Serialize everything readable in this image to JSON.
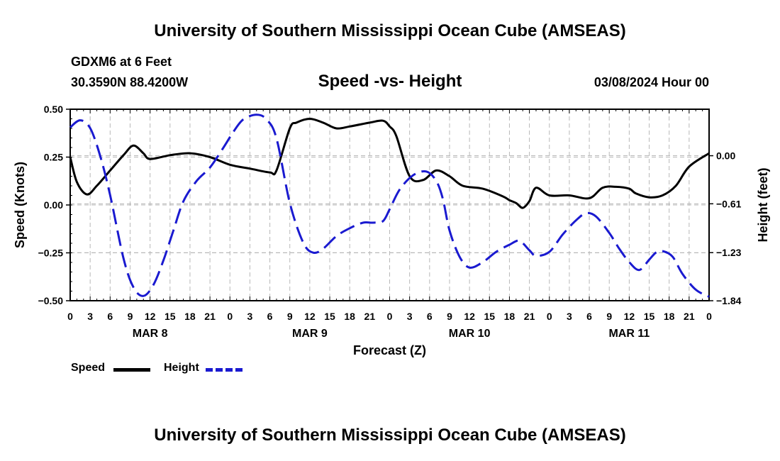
{
  "header": {
    "title": "University of Southern Mississippi Ocean Cube (AMSEAS)",
    "station": "GDXM6 at 6 Feet",
    "coords": "30.3590N  88.4200W",
    "datetime": "03/08/2024 Hour 00"
  },
  "footer": {
    "title": "University of Southern Mississippi Ocean Cube (AMSEAS)"
  },
  "legend": {
    "speed_label": "Speed",
    "height_label": "Height"
  },
  "colors": {
    "speed": "#000000",
    "height": "#1a1ad0",
    "grid": "#b8b8b8"
  },
  "chart_data": {
    "type": "line",
    "title": "Speed -vs- Height",
    "xlabel": "Forecast (Z)",
    "ylabel": "Speed (Knots)",
    "y2label": "Height (feet)",
    "xlim": [
      0,
      96
    ],
    "ylim": [
      -0.5,
      0.5
    ],
    "y2lim": [
      -1.84,
      0.59
    ],
    "yticks": [
      0.5,
      0.25,
      0.0,
      -0.25,
      -0.5
    ],
    "ytick_labels": [
      "0.50",
      "0.25",
      "0.00",
      "−0.25",
      "−0.50"
    ],
    "y2ticks": [
      0.0,
      -0.61,
      -1.23,
      -1.84
    ],
    "y2tick_labels": [
      "0.00",
      "−0.61",
      "−1.23",
      "−1.84"
    ],
    "xtick_labels": [
      "0",
      "3",
      "6",
      "9",
      "12",
      "15",
      "18",
      "21",
      "0",
      "3",
      "6",
      "9",
      "12",
      "15",
      "18",
      "21",
      "0",
      "3",
      "6",
      "9",
      "12",
      "15",
      "18",
      "21",
      "0",
      "3",
      "6",
      "9",
      "12",
      "15",
      "18",
      "21",
      "0"
    ],
    "day_labels": [
      {
        "label": "MAR 8",
        "x": 12
      },
      {
        "label": "MAR 9",
        "x": 36
      },
      {
        "label": "MAR 10",
        "x": 60
      },
      {
        "label": "MAR 11",
        "x": 84
      }
    ],
    "grid": true,
    "series": [
      {
        "name": "Speed",
        "axis": "left",
        "style": "solid",
        "x": [
          0,
          1,
          2.5,
          4,
          6,
          8,
          9.5,
          11,
          12,
          15,
          18,
          21,
          24,
          27,
          30,
          31,
          33,
          34,
          36,
          38,
          40,
          42,
          45,
          47,
          48,
          49,
          51,
          53,
          55,
          57,
          59,
          62,
          65,
          66,
          67,
          68,
          69,
          70,
          72,
          75,
          78,
          80,
          82,
          84,
          85,
          87,
          89,
          91,
          93,
          96
        ],
        "values": [
          0.25,
          0.12,
          0.055,
          0.1,
          0.18,
          0.26,
          0.31,
          0.27,
          0.24,
          0.26,
          0.27,
          0.25,
          0.21,
          0.19,
          0.17,
          0.18,
          0.4,
          0.43,
          0.45,
          0.43,
          0.4,
          0.41,
          0.43,
          0.44,
          0.41,
          0.36,
          0.15,
          0.13,
          0.18,
          0.15,
          0.1,
          0.085,
          0.045,
          0.025,
          0.01,
          -0.015,
          0.02,
          0.09,
          0.05,
          0.05,
          0.035,
          0.09,
          0.095,
          0.085,
          0.06,
          0.04,
          0.05,
          0.1,
          0.2,
          0.27
        ]
      },
      {
        "name": "Height",
        "axis": "right",
        "style": "dashed",
        "x": [
          0,
          1.5,
          3,
          4.5,
          6,
          8,
          9.5,
          11,
          12.5,
          14,
          15.5,
          17,
          19,
          21,
          23,
          24.5,
          26,
          28,
          29.5,
          31,
          33,
          35,
          36.5,
          38,
          40,
          42,
          44,
          45.5,
          47,
          48,
          49.5,
          51.5,
          53.5,
          55,
          56,
          57,
          58.5,
          60,
          62,
          64,
          66,
          67.5,
          69,
          70,
          72,
          74,
          76,
          77.5,
          79,
          81,
          82.5,
          84,
          85.5,
          87,
          88,
          89,
          90.5,
          92,
          94,
          96
        ],
        "values": [
          0.36,
          0.45,
          0.35,
          0.0,
          -0.5,
          -1.3,
          -1.67,
          -1.78,
          -1.64,
          -1.33,
          -0.95,
          -0.58,
          -0.32,
          -0.15,
          0.1,
          0.3,
          0.46,
          0.52,
          0.46,
          0.22,
          -0.6,
          -1.1,
          -1.23,
          -1.18,
          -1.02,
          -0.92,
          -0.85,
          -0.85,
          -0.83,
          -0.68,
          -0.43,
          -0.25,
          -0.2,
          -0.32,
          -0.55,
          -0.95,
          -1.28,
          -1.42,
          -1.35,
          -1.22,
          -1.13,
          -1.08,
          -1.2,
          -1.27,
          -1.22,
          -1.0,
          -0.82,
          -0.73,
          -0.77,
          -0.98,
          -1.18,
          -1.35,
          -1.45,
          -1.32,
          -1.23,
          -1.21,
          -1.28,
          -1.5,
          -1.7,
          -1.79
        ]
      }
    ]
  }
}
